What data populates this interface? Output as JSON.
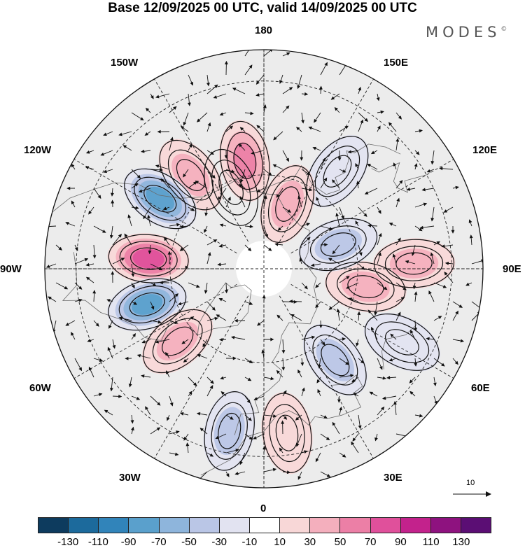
{
  "title": "Base 12/09/2025 00 UTC, valid 14/09/2025 00 UTC",
  "brand": "MODES",
  "brand_mark": "©",
  "longitude_labels": {
    "top": "180",
    "top_right": "150E",
    "right_upper": "120E",
    "right": "90E",
    "right_lower": "60E",
    "bottom_right": "30E",
    "bottom": "0",
    "bottom_left": "30W",
    "left_lower": "60W",
    "left": "90W",
    "left_upper": "120W",
    "top_left": "150W"
  },
  "reference_vector": {
    "label": "10"
  },
  "colorbar": {
    "colors": [
      "#0d3b5e",
      "#1c6a9c",
      "#3184ba",
      "#5aa0cc",
      "#8eb5dc",
      "#bac6e6",
      "#e2e3f1",
      "#ffffff",
      "#f8d7d7",
      "#f4afbd",
      "#ec7fa6",
      "#e0509b",
      "#c3228c",
      "#8e127f",
      "#5b0e74"
    ],
    "tick_labels": [
      "-130",
      "-110",
      "-90",
      "-70",
      "-50",
      "-30",
      "-10",
      "10",
      "30",
      "50",
      "70",
      "90",
      "110",
      "130"
    ]
  },
  "anomaly_centers": [
    {
      "lon": -170,
      "lat": 55,
      "value": 55
    },
    {
      "lon": -142,
      "lat": 52,
      "value": 40
    },
    {
      "lon": -124,
      "lat": 50,
      "value": -85
    },
    {
      "lon": -95,
      "lat": 53,
      "value": 85
    },
    {
      "lon": -73,
      "lat": 51,
      "value": -75
    },
    {
      "lon": -50,
      "lat": 54,
      "value": 50
    },
    {
      "lon": -12,
      "lat": 37,
      "value": -45
    },
    {
      "lon": 8,
      "lat": 37,
      "value": 30
    },
    {
      "lon": 38,
      "lat": 53,
      "value": -40
    },
    {
      "lon": 62,
      "lat": 40,
      "value": -25
    },
    {
      "lon": 80,
      "lat": 57,
      "value": 35
    },
    {
      "lon": 92,
      "lat": 42,
      "value": 45
    },
    {
      "lon": 108,
      "lat": 65,
      "value": -35
    },
    {
      "lon": 143,
      "lat": 51,
      "value": -30
    },
    {
      "lon": 160,
      "lat": 68,
      "value": 40
    },
    {
      "lon": -158,
      "lat": 62,
      "value": -10
    }
  ]
}
